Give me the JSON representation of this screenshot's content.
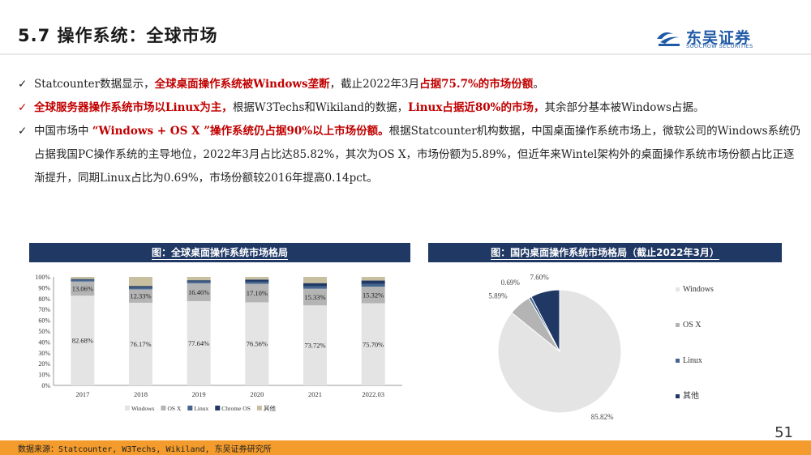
{
  "header": {
    "title": "5.7 操作系统：全球市场",
    "logo_cn": "东吴证券",
    "logo_en": "SOOCHOW SECURITIES"
  },
  "bullets": [
    {
      "check": "✓",
      "check_color": "#222222",
      "parts": [
        {
          "text": "Statcounter数据显示，",
          "em": false
        },
        {
          "text": "全球桌面操作系统被Windows垄断",
          "em": true
        },
        {
          "text": "，截止2022年3月",
          "em": false
        },
        {
          "text": "占据75.7%的市场份额",
          "em": true
        },
        {
          "text": "。",
          "em": false
        }
      ]
    },
    {
      "check": "✓",
      "check_color": "#c00000",
      "parts": [
        {
          "text": "全球服务器操作系统市场以Linux为主，",
          "em": true
        },
        {
          "text": "根据W3Techs和Wikiland的数据，",
          "em": false
        },
        {
          "text": "Linux占据近80%的市场，",
          "em": true
        },
        {
          "text": "其余部分基本被Windows占据。",
          "em": false
        }
      ]
    },
    {
      "check": "✓",
      "check_color": "#222222",
      "parts": [
        {
          "text": "中国市场中 ",
          "em": false
        },
        {
          "text": "“Windows + OS X ”操作系统仍占据90%以上市场份额。",
          "em": true
        },
        {
          "text": "根据Statcounter机构数据，中国桌面操作系统市场上，微软公司的Windows系统仍占据我国PC操作系统的主导地位，2022年3月占比达85.82%，其次为OS X，市场份额为5.89%，但近年来Wintel架构外的桌面操作系统市场份额占比正逐渐提升，同期Linux占比为0.69%，市场份额较2016年提高0.14pct。",
          "em": false
        }
      ]
    }
  ],
  "chart_data": [
    {
      "type": "bar",
      "stacked": true,
      "title": "图：全球桌面操作系统市场格局",
      "categories": [
        "2017",
        "2018",
        "2019",
        "2020",
        "2021",
        "2022.03"
      ],
      "ylim": [
        0,
        100
      ],
      "yticks": [
        "0%",
        "10%",
        "20%",
        "30%",
        "40%",
        "50%",
        "60%",
        "70%",
        "80%",
        "90%",
        "100%"
      ],
      "series": [
        {
          "name": "Windows",
          "color": "#e4e4e4",
          "values": [
            82.68,
            76.17,
            77.64,
            76.56,
            73.72,
            75.7
          ],
          "labels": [
            "82.68%",
            "76.17%",
            "77.64%",
            "76.56%",
            "73.72%",
            "75.70%"
          ]
        },
        {
          "name": "OS X",
          "color": "#b4b4b4",
          "values": [
            13.06,
            12.33,
            16.46,
            17.1,
            15.33,
            15.32
          ],
          "labels": [
            "13.06%",
            "12.33%",
            "16.46%",
            "17.10%",
            "15.33%",
            "15.32%"
          ]
        },
        {
          "name": "Linux",
          "color": "#44658f",
          "values": [
            1.5,
            1.6,
            1.6,
            1.9,
            2.4,
            2.4
          ]
        },
        {
          "name": "Chrome OS",
          "color": "#1f3864",
          "values": [
            0.8,
            1.5,
            1.2,
            2.0,
            2.8,
            3.2
          ]
        },
        {
          "name": "其他",
          "color": "#c8bfa0",
          "values": [
            1.96,
            8.4,
            3.1,
            2.44,
            5.75,
            3.38
          ]
        }
      ],
      "legend": "bottom",
      "grid": false
    },
    {
      "type": "pie",
      "title": "图：国内桌面操作系统市场格局（截止2022年3月）",
      "slices": [
        {
          "name": "Windows",
          "value": 85.82,
          "label": "85.82%",
          "color": "#e4e4e4"
        },
        {
          "name": "OS X",
          "value": 5.89,
          "label": "5.89%",
          "color": "#b4b4b4"
        },
        {
          "name": "Linux",
          "value": 0.69,
          "label": "0.69%",
          "color": "#44658f"
        },
        {
          "name": "其他",
          "value": 7.6,
          "label": "7.60%",
          "color": "#1f3864"
        }
      ],
      "legend": "right"
    }
  ],
  "page_number": "51",
  "footer": {
    "source": "数据来源：Statcounter, W3Techs, Wikiland, 东吴证券研究所"
  }
}
